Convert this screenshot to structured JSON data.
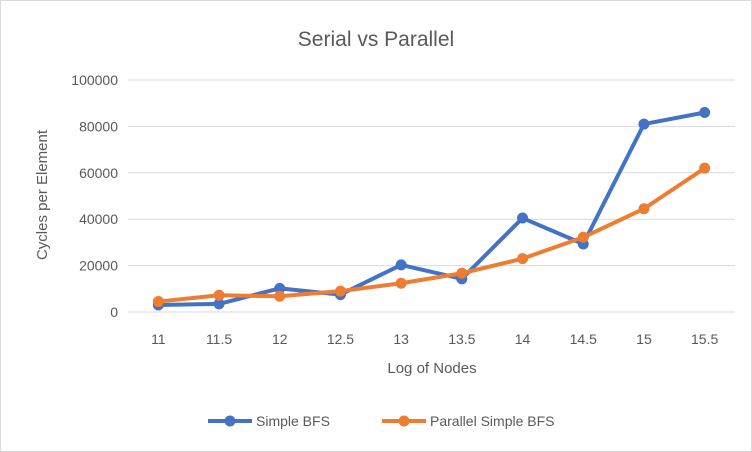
{
  "chart_data": {
    "type": "line",
    "title": "Serial vs Parallel",
    "xlabel": "Log of Nodes",
    "ylabel": "Cycles per Element",
    "categories": [
      "11",
      "11.5",
      "12",
      "12.5",
      "13",
      "13.5",
      "14",
      "14.5",
      "15",
      "15.5"
    ],
    "yticks": [
      "0",
      "20000",
      "40000",
      "60000",
      "80000",
      "100000"
    ],
    "ylim": [
      0,
      100000
    ],
    "grid": true,
    "legend_position": "bottom",
    "series": [
      {
        "name": "Simple BFS",
        "color": "#4472C4",
        "values": [
          3000,
          3500,
          10200,
          7500,
          20300,
          14300,
          40500,
          29300,
          81000,
          86000
        ]
      },
      {
        "name": "Parallel Simple BFS",
        "color": "#ED7D31",
        "values": [
          4500,
          7200,
          6800,
          9000,
          12400,
          16700,
          23000,
          32200,
          44500,
          62000
        ]
      }
    ]
  }
}
